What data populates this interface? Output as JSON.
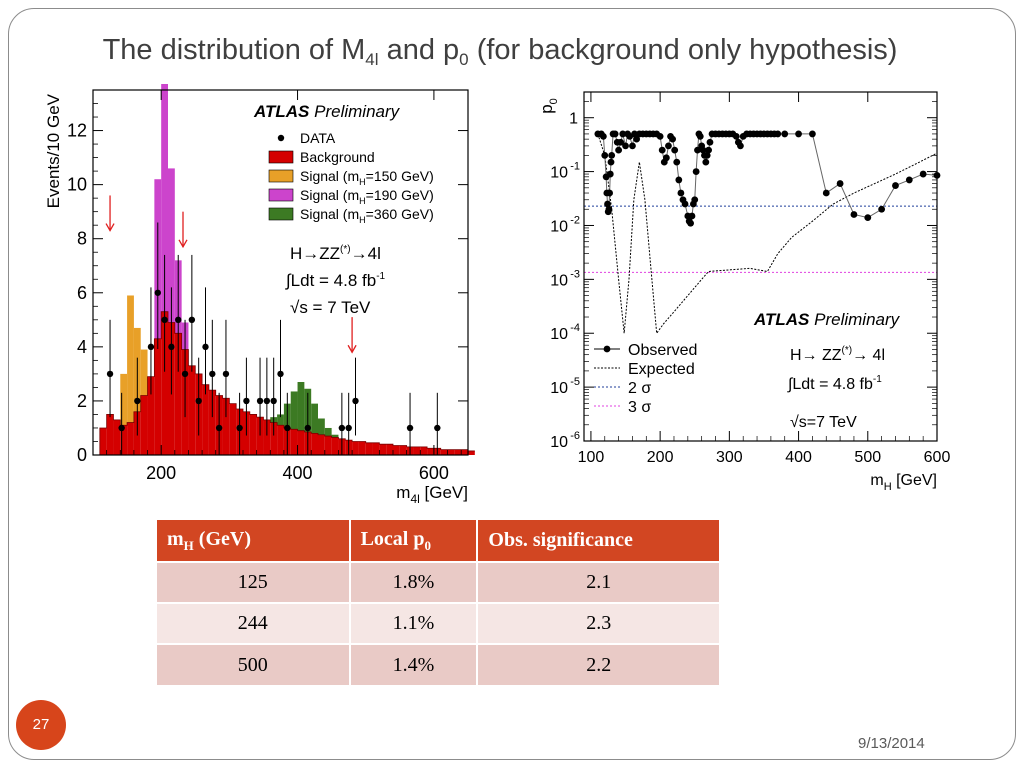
{
  "slide": {
    "title_pre": "The distribution of M",
    "title_sub1": "4l",
    "title_mid": " and p",
    "title_sub2": "0",
    "title_post": " (for background only hypothesis)",
    "number": "27",
    "date": "9/13/2014"
  },
  "colors": {
    "accent": "#d24622",
    "background_fill": "#d40000",
    "signal150": "#e8a028",
    "signal190": "#cc44cc",
    "signal360": "#3c7a23",
    "sigma2": "#1f3d9a",
    "sigma3": "#e040e0"
  },
  "table": {
    "header_mh": "m",
    "header_mh_sub": "H",
    "header_mh_unit": " (GeV)",
    "header_p0": "Local p",
    "header_p0_sub": "0",
    "header_sig": "Obs. significance",
    "rows": [
      {
        "mh": "125",
        "p0": "1.8%",
        "sig": "2.1"
      },
      {
        "mh": "244",
        "p0": "1.1%",
        "sig": "2.3"
      },
      {
        "mh": "500",
        "p0": "1.4%",
        "sig": "2.2"
      }
    ]
  },
  "chart_data": [
    {
      "type": "bar",
      "name": "m4l-distribution",
      "xlabel": "m4l [GeV]",
      "ylabel": "Events/10 GeV",
      "xlim": [
        100,
        650
      ],
      "ylim": [
        0,
        13.5
      ],
      "xticks": [
        200,
        400,
        600
      ],
      "yticks": [
        0,
        2,
        4,
        6,
        8,
        10,
        12
      ],
      "atlas_label": "ATLAS",
      "atlas_sub": "Preliminary",
      "legend": [
        "DATA",
        "Background",
        "Signal (mH=150 GeV)",
        "Signal (mH=190 GeV)",
        "Signal (mH=360 GeV)"
      ],
      "legend_position": "top-right",
      "annotations": [
        "H→ZZ(*)→4l",
        "∫Ldt = 4.8 fb-1",
        "√s = 7 TeV"
      ],
      "arrows_at_x": [
        125,
        232,
        480
      ],
      "bin_width": 10,
      "background": [
        1.0,
        1.5,
        1.3,
        1.1,
        1.2,
        1.6,
        2.2,
        2.9,
        4.3,
        5.3,
        4.9,
        4.5,
        3.9,
        3.3,
        3.0,
        2.6,
        2.4,
        2.2,
        2.1,
        1.9,
        1.7,
        1.6,
        1.5,
        1.4,
        1.3,
        1.2,
        1.1,
        1.0,
        0.95,
        0.9,
        0.85,
        0.8,
        0.75,
        0.7,
        0.65,
        0.6,
        0.55,
        0.5,
        0.5,
        0.45,
        0.45,
        0.4,
        0.4,
        0.35,
        0.35,
        0.3,
        0.3,
        0.3,
        0.25,
        0.25,
        0.2,
        0.2,
        0.2,
        0.2,
        0.15
      ],
      "signal150": [
        0,
        0,
        0,
        1.9,
        4.7,
        3.1,
        1.7,
        0,
        0,
        0,
        0,
        0,
        0,
        0,
        0,
        0,
        0,
        0,
        0,
        0,
        0,
        0,
        0,
        0,
        0,
        0,
        0,
        0,
        0,
        0,
        0,
        0,
        0,
        0,
        0,
        0,
        0,
        0,
        0,
        0,
        0,
        0,
        0,
        0,
        0,
        0,
        0,
        0,
        0,
        0,
        0,
        0,
        0,
        0,
        0
      ],
      "signal190": [
        0,
        0,
        0,
        0,
        0,
        0,
        0,
        0,
        5.9,
        9.7,
        5.7,
        2.7,
        1.0,
        0,
        0,
        0,
        0,
        0,
        0,
        0,
        0,
        0,
        0,
        0,
        0,
        0,
        0,
        0,
        0,
        0,
        0,
        0,
        0,
        0,
        0,
        0,
        0,
        0,
        0,
        0,
        0,
        0,
        0,
        0,
        0,
        0,
        0,
        0,
        0,
        0,
        0,
        0,
        0,
        0,
        0
      ],
      "signal360": [
        0,
        0,
        0,
        0,
        0,
        0,
        0,
        0,
        0,
        0,
        0,
        0,
        0,
        0,
        0,
        0,
        0,
        0,
        0,
        0,
        0,
        0,
        0,
        0,
        0,
        0.2,
        0.4,
        0.9,
        1.4,
        1.8,
        1.6,
        1.1,
        0.6,
        0.3,
        0.1,
        0,
        0,
        0,
        0,
        0,
        0,
        0,
        0,
        0,
        0,
        0,
        0,
        0,
        0,
        0,
        0,
        0,
        0,
        0,
        0
      ],
      "data_points": [
        {
          "x": 125,
          "y": 3,
          "err": 2.0
        },
        {
          "x": 142,
          "y": 1,
          "err": 1.3
        },
        {
          "x": 165,
          "y": 2,
          "err": 1.6
        },
        {
          "x": 185,
          "y": 4,
          "err": 2.2
        },
        {
          "x": 195,
          "y": 6,
          "err": 2.6
        },
        {
          "x": 205,
          "y": 5,
          "err": 2.4
        },
        {
          "x": 215,
          "y": 4,
          "err": 2.2
        },
        {
          "x": 225,
          "y": 5,
          "err": 2.4
        },
        {
          "x": 235,
          "y": 3,
          "err": 2.0
        },
        {
          "x": 245,
          "y": 5,
          "err": 2.4
        },
        {
          "x": 255,
          "y": 2,
          "err": 1.6
        },
        {
          "x": 265,
          "y": 4,
          "err": 2.2
        },
        {
          "x": 275,
          "y": 3,
          "err": 2.0
        },
        {
          "x": 285,
          "y": 1,
          "err": 1.3
        },
        {
          "x": 295,
          "y": 3,
          "err": 2.0
        },
        {
          "x": 315,
          "y": 1,
          "err": 1.3
        },
        {
          "x": 325,
          "y": 2,
          "err": 1.6
        },
        {
          "x": 345,
          "y": 2,
          "err": 1.6
        },
        {
          "x": 355,
          "y": 2,
          "err": 1.6
        },
        {
          "x": 365,
          "y": 2,
          "err": 1.6
        },
        {
          "x": 375,
          "y": 3,
          "err": 2.0
        },
        {
          "x": 385,
          "y": 1,
          "err": 1.3
        },
        {
          "x": 415,
          "y": 1,
          "err": 1.3
        },
        {
          "x": 465,
          "y": 1,
          "err": 1.3
        },
        {
          "x": 475,
          "y": 1,
          "err": 1.3
        },
        {
          "x": 485,
          "y": 2,
          "err": 1.6
        },
        {
          "x": 565,
          "y": 1,
          "err": 1.3
        },
        {
          "x": 605,
          "y": 1,
          "err": 1.3
        }
      ]
    },
    {
      "type": "line",
      "name": "local-p0-scan",
      "xlabel": "mH [GeV]",
      "ylabel": "p0",
      "y_scale": "log",
      "xlim": [
        90,
        600
      ],
      "ylim": [
        1e-06,
        3
      ],
      "xticks": [
        100,
        200,
        300,
        400,
        500,
        600
      ],
      "yticks_exp": [
        0,
        -1,
        -2,
        -3,
        -4,
        -5,
        -6
      ],
      "atlas_label": "ATLAS",
      "atlas_sub": "Preliminary",
      "legend": [
        "Observed",
        "Expected",
        "2 σ",
        "3 σ"
      ],
      "legend_position": "bottom-left",
      "annotations": [
        "H→ ZZ(*)→ 4l",
        "∫Ldt = 4.8 fb-1",
        "√s=7 TeV"
      ],
      "reference_lines": {
        "sigma2": 0.0228,
        "sigma3": 0.00135
      },
      "observed": [
        {
          "x": 110,
          "y": 0.5
        },
        {
          "x": 115,
          "y": 0.5
        },
        {
          "x": 118,
          "y": 0.45
        },
        {
          "x": 120,
          "y": 0.2
        },
        {
          "x": 122,
          "y": 0.08
        },
        {
          "x": 123,
          "y": 0.04
        },
        {
          "x": 124,
          "y": 0.025
        },
        {
          "x": 125,
          "y": 0.018
        },
        {
          "x": 126,
          "y": 0.02
        },
        {
          "x": 127,
          "y": 0.04
        },
        {
          "x": 128,
          "y": 0.09
        },
        {
          "x": 129,
          "y": 0.15
        },
        {
          "x": 130,
          "y": 0.2
        },
        {
          "x": 132,
          "y": 0.5
        },
        {
          "x": 135,
          "y": 0.5
        },
        {
          "x": 138,
          "y": 0.35
        },
        {
          "x": 140,
          "y": 0.25
        },
        {
          "x": 143,
          "y": 0.35
        },
        {
          "x": 146,
          "y": 0.5
        },
        {
          "x": 150,
          "y": 0.3
        },
        {
          "x": 153,
          "y": 0.5
        },
        {
          "x": 156,
          "y": 0.45
        },
        {
          "x": 160,
          "y": 0.3
        },
        {
          "x": 163,
          "y": 0.5
        },
        {
          "x": 166,
          "y": 0.4
        },
        {
          "x": 170,
          "y": 0.5
        },
        {
          "x": 175,
          "y": 0.5
        },
        {
          "x": 180,
          "y": 0.5
        },
        {
          "x": 185,
          "y": 0.5
        },
        {
          "x": 190,
          "y": 0.5
        },
        {
          "x": 195,
          "y": 0.5
        },
        {
          "x": 200,
          "y": 0.45
        },
        {
          "x": 203,
          "y": 0.25
        },
        {
          "x": 206,
          "y": 0.15
        },
        {
          "x": 209,
          "y": 0.18
        },
        {
          "x": 212,
          "y": 0.3
        },
        {
          "x": 215,
          "y": 0.45
        },
        {
          "x": 218,
          "y": 0.4
        },
        {
          "x": 221,
          "y": 0.25
        },
        {
          "x": 224,
          "y": 0.15
        },
        {
          "x": 227,
          "y": 0.07
        },
        {
          "x": 230,
          "y": 0.04
        },
        {
          "x": 233,
          "y": 0.03
        },
        {
          "x": 236,
          "y": 0.025
        },
        {
          "x": 240,
          "y": 0.015
        },
        {
          "x": 242,
          "y": 0.012
        },
        {
          "x": 244,
          "y": 0.011
        },
        {
          "x": 246,
          "y": 0.015
        },
        {
          "x": 248,
          "y": 0.025
        },
        {
          "x": 250,
          "y": 0.03
        },
        {
          "x": 252,
          "y": 0.1
        },
        {
          "x": 254,
          "y": 0.25
        },
        {
          "x": 256,
          "y": 0.5
        },
        {
          "x": 258,
          "y": 0.45
        },
        {
          "x": 260,
          "y": 0.3
        },
        {
          "x": 262,
          "y": 0.25
        },
        {
          "x": 264,
          "y": 0.2
        },
        {
          "x": 266,
          "y": 0.15
        },
        {
          "x": 268,
          "y": 0.2
        },
        {
          "x": 270,
          "y": 0.25
        },
        {
          "x": 272,
          "y": 0.35
        },
        {
          "x": 275,
          "y": 0.5
        },
        {
          "x": 280,
          "y": 0.5
        },
        {
          "x": 285,
          "y": 0.5
        },
        {
          "x": 290,
          "y": 0.5
        },
        {
          "x": 295,
          "y": 0.5
        },
        {
          "x": 300,
          "y": 0.5
        },
        {
          "x": 305,
          "y": 0.5
        },
        {
          "x": 310,
          "y": 0.45
        },
        {
          "x": 313,
          "y": 0.35
        },
        {
          "x": 316,
          "y": 0.3
        },
        {
          "x": 320,
          "y": 0.45
        },
        {
          "x": 325,
          "y": 0.5
        },
        {
          "x": 330,
          "y": 0.5
        },
        {
          "x": 335,
          "y": 0.5
        },
        {
          "x": 340,
          "y": 0.5
        },
        {
          "x": 345,
          "y": 0.5
        },
        {
          "x": 350,
          "y": 0.5
        },
        {
          "x": 355,
          "y": 0.5
        },
        {
          "x": 360,
          "y": 0.5
        },
        {
          "x": 365,
          "y": 0.5
        },
        {
          "x": 370,
          "y": 0.5
        },
        {
          "x": 380,
          "y": 0.5
        },
        {
          "x": 400,
          "y": 0.5
        },
        {
          "x": 420,
          "y": 0.5
        },
        {
          "x": 440,
          "y": 0.04
        },
        {
          "x": 460,
          "y": 0.06
        },
        {
          "x": 480,
          "y": 0.016
        },
        {
          "x": 500,
          "y": 0.014
        },
        {
          "x": 520,
          "y": 0.02
        },
        {
          "x": 540,
          "y": 0.055
        },
        {
          "x": 560,
          "y": 0.07
        },
        {
          "x": 580,
          "y": 0.09
        },
        {
          "x": 600,
          "y": 0.085
        }
      ],
      "expected": [
        {
          "x": 110,
          "y": 0.5
        },
        {
          "x": 120,
          "y": 0.2
        },
        {
          "x": 130,
          "y": 0.02
        },
        {
          "x": 140,
          "y": 0.001
        },
        {
          "x": 148,
          "y": 0.0001
        },
        {
          "x": 155,
          "y": 0.001
        },
        {
          "x": 162,
          "y": 0.03
        },
        {
          "x": 170,
          "y": 0.15
        },
        {
          "x": 178,
          "y": 0.03
        },
        {
          "x": 186,
          "y": 0.002
        },
        {
          "x": 195,
          "y": 0.0001
        },
        {
          "x": 205,
          "y": 0.00015
        },
        {
          "x": 220,
          "y": 0.00025
        },
        {
          "x": 240,
          "y": 0.0005
        },
        {
          "x": 260,
          "y": 0.001
        },
        {
          "x": 270,
          "y": 0.0014
        },
        {
          "x": 300,
          "y": 0.0015
        },
        {
          "x": 330,
          "y": 0.0016
        },
        {
          "x": 355,
          "y": 0.0014
        },
        {
          "x": 370,
          "y": 0.003
        },
        {
          "x": 390,
          "y": 0.006
        },
        {
          "x": 420,
          "y": 0.012
        },
        {
          "x": 450,
          "y": 0.025
        },
        {
          "x": 480,
          "y": 0.04
        },
        {
          "x": 510,
          "y": 0.06
        },
        {
          "x": 540,
          "y": 0.09
        },
        {
          "x": 570,
          "y": 0.14
        },
        {
          "x": 600,
          "y": 0.22
        }
      ]
    }
  ]
}
